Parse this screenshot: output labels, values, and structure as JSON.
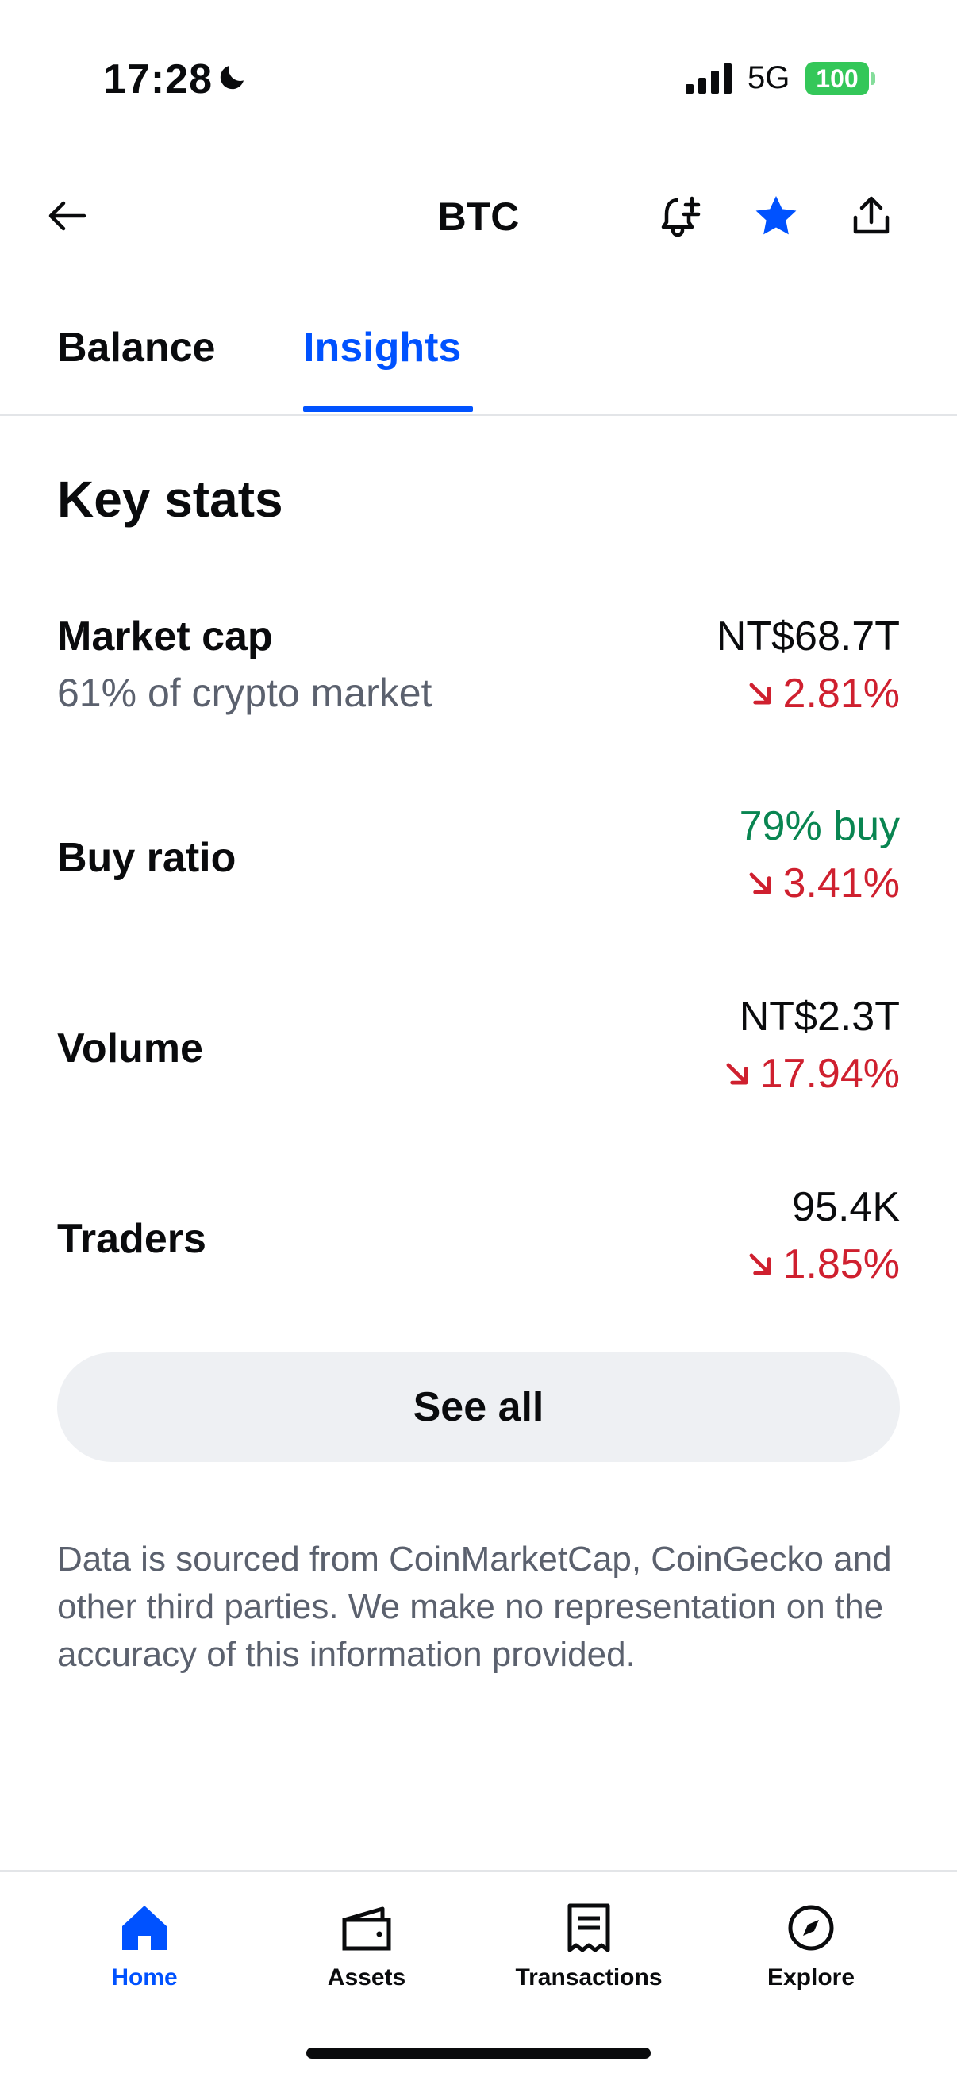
{
  "status_bar": {
    "time": "17:28",
    "network": "5G",
    "battery": "100"
  },
  "header": {
    "title": "BTC"
  },
  "tabs": [
    {
      "label": "Balance",
      "active": false
    },
    {
      "label": "Insights",
      "active": true
    }
  ],
  "key_stats": {
    "title": "Key stats",
    "rows": [
      {
        "label": "Market cap",
        "sub": "61% of crypto market",
        "value": "NT$68.7T",
        "change": "2.81%",
        "direction": "down"
      },
      {
        "label": "Buy ratio",
        "sub": "",
        "value": "79% buy",
        "change": "3.41%",
        "direction": "down"
      },
      {
        "label": "Volume",
        "sub": "",
        "value": "NT$2.3T",
        "change": "17.94%",
        "direction": "down"
      },
      {
        "label": "Traders",
        "sub": "",
        "value": "95.4K",
        "change": "1.85%",
        "direction": "down"
      }
    ],
    "see_all": "See all"
  },
  "disclaimer": "Data is sourced from CoinMarketCap, CoinGecko and other third parties. We make no representation on the accuracy of this information provided.",
  "bottom_nav": [
    {
      "label": "Home",
      "icon": "home-icon",
      "active": true
    },
    {
      "label": "Assets",
      "icon": "wallet-icon",
      "active": false
    },
    {
      "label": "Transactions",
      "icon": "receipt-icon",
      "active": false
    },
    {
      "label": "Explore",
      "icon": "compass-icon",
      "active": false
    }
  ],
  "colors": {
    "accent": "#0052ff",
    "negative": "#cf202f",
    "positive": "#098551",
    "muted": "#5b616e"
  }
}
